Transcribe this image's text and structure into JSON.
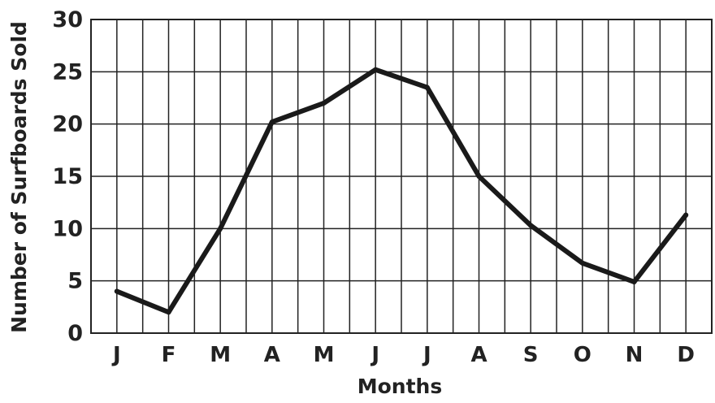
{
  "chart_data": {
    "type": "line",
    "title": "",
    "xlabel": "Months",
    "ylabel": "Number of Surfboards Sold",
    "categories": [
      "J",
      "F",
      "M",
      "A",
      "M",
      "J",
      "J",
      "A",
      "S",
      "O",
      "N",
      "D"
    ],
    "series": [
      {
        "name": "",
        "values": [
          4,
          2,
          10,
          20.2,
          22,
          25.2,
          23.5,
          15,
          10.3,
          6.7,
          4.9,
          11.3
        ]
      }
    ],
    "ylim": [
      0,
      30
    ],
    "yticks": [
      0,
      5,
      10,
      15,
      20,
      25,
      30
    ],
    "grid": true,
    "colors": {
      "line": "#1a1a1a",
      "grid": "#222222",
      "text": "#222222",
      "background": "#ffffff"
    }
  }
}
